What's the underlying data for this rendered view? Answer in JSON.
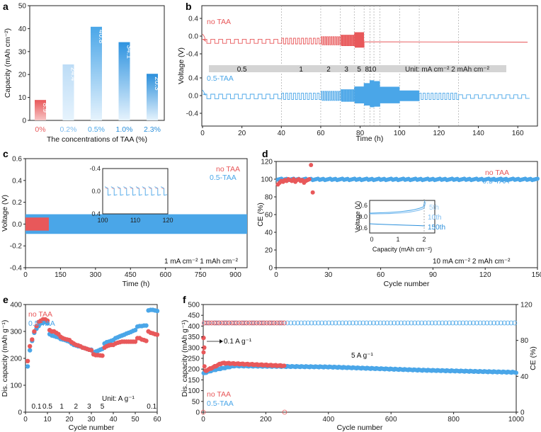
{
  "colors": {
    "no_taa": "#e8585a",
    "taa": "#4aa6e8",
    "taa_dark": "#2b8fdb",
    "grey_bar": "#d4d4d4"
  },
  "panel_labels": {
    "a": "a",
    "b": "b",
    "c": "c",
    "d": "d",
    "e": "e",
    "f": "f"
  },
  "chart_data": [
    {
      "id": "a",
      "type": "bar",
      "title": "",
      "xlabel": "The concentrations of TAA (%)",
      "ylabel": "Capacity (mAh cm⁻²)",
      "ylim": [
        0,
        50
      ],
      "yticks": [
        "0",
        "10",
        "20",
        "30",
        "40",
        "50"
      ],
      "categories": [
        "0%",
        "0.2%",
        "0.5%",
        "1.0%",
        "2.3%"
      ],
      "values": [
        8.9,
        24.4,
        40.8,
        34.1,
        20.3
      ],
      "value_labels": [
        "8.9",
        "24.4",
        "40.8",
        "34.1",
        "20.3"
      ]
    },
    {
      "id": "b",
      "type": "line",
      "xlabel": "Time (h)",
      "ylabel": "Voltage (V)",
      "xlim": [
        0,
        170
      ],
      "xticks": [
        "0",
        "20",
        "40",
        "60",
        "80",
        "100",
        "120",
        "140",
        "160"
      ],
      "yticks_top": [
        "0.4",
        "0.0",
        "-0.4"
      ],
      "yticks_bottom": [
        "0.4",
        "0.0",
        "-0.4"
      ],
      "series": [
        {
          "name": "no TAA"
        },
        {
          "name": "0.5-TAA"
        }
      ],
      "rate_segments_h": [
        0,
        40,
        60,
        70,
        77,
        82,
        85,
        87,
        90,
        100,
        110,
        130,
        165
      ],
      "rate_labels": [
        "0.5",
        "1",
        "2",
        "3",
        "5",
        "8",
        "10"
      ],
      "unit_note": "Unit: mA cm⁻²   2 mAh cm⁻²"
    },
    {
      "id": "c",
      "type": "line",
      "xlabel": "Time (h)",
      "ylabel": "Voltage (V)",
      "xlim": [
        0,
        950
      ],
      "ylim": [
        -0.4,
        0.6
      ],
      "xticks": [
        "0",
        "150",
        "300",
        "450",
        "600",
        "750",
        "900"
      ],
      "yticks": [
        "-0.4",
        "-0.2",
        "0.0",
        "0.2",
        "0.4",
        "0.6"
      ],
      "series": [
        {
          "name": "no TAA",
          "end_h": 100
        },
        {
          "name": "0.5-TAA",
          "end_h": 950
        }
      ],
      "inset": {
        "xlim": [
          100,
          120
        ],
        "ylim": [
          -0.4,
          0.4
        ],
        "xticks": [
          "100",
          "110",
          "120"
        ],
        "yticks": [
          "-0.4",
          "0.0",
          "0.4"
        ]
      },
      "condition": "1 mA cm⁻²   1 mAh cm⁻²"
    },
    {
      "id": "d",
      "type": "scatter",
      "xlabel": "Cycle number",
      "ylabel": "CE (%)",
      "xlim": [
        0,
        150
      ],
      "ylim": [
        0,
        120
      ],
      "xticks": [
        "0",
        "30",
        "60",
        "90",
        "120",
        "150"
      ],
      "yticks": [
        "0",
        "20",
        "40",
        "60",
        "80",
        "100",
        "120"
      ],
      "series": [
        {
          "name": "no TAA",
          "x": [
            1,
            2,
            3,
            4,
            5,
            6,
            7,
            8,
            9,
            10,
            11,
            12,
            13,
            14,
            15,
            16,
            17,
            18,
            19,
            20,
            21
          ],
          "y": [
            94,
            96,
            98,
            97,
            99,
            98,
            100,
            99,
            98,
            100,
            97,
            99,
            100,
            98,
            99,
            96,
            98,
            99,
            100,
            116,
            85
          ]
        },
        {
          "name": "0.5-TAA",
          "x_range": [
            1,
            150
          ],
          "y_mean": 99.8
        }
      ],
      "inset": {
        "xlabel": "Capacity (mAh cm⁻²)",
        "ylabel": "Voltage (V)",
        "xticks": [
          "0",
          "1",
          "2"
        ],
        "yticks": [
          "0.6",
          "0.0",
          "-0.6"
        ],
        "legend": [
          "5th",
          "10th",
          "150th"
        ]
      },
      "condition": "10 mA cm⁻²   2 mAh cm⁻²"
    },
    {
      "id": "e",
      "type": "scatter",
      "xlabel": "Cycle number",
      "ylabel": "Dis. capacity (mAh g⁻¹)",
      "xlim": [
        0,
        60
      ],
      "ylim": [
        0,
        400
      ],
      "xticks": [
        "0",
        "10",
        "20",
        "30",
        "40",
        "50",
        "60"
      ],
      "yticks": [
        "0",
        "100",
        "200",
        "300",
        "400"
      ],
      "series": [
        {
          "name": "no TAA",
          "y": [
            190,
            245,
            270,
            300,
            320,
            335,
            340,
            345,
            345,
            340,
            305,
            300,
            300,
            295,
            290,
            280,
            275,
            272,
            270,
            268,
            260,
            255,
            250,
            248,
            245,
            240,
            238,
            235,
            232,
            230,
            215,
            212,
            212,
            211,
            210,
            240,
            245,
            248,
            250,
            250,
            255,
            258,
            260,
            262,
            262,
            262,
            262,
            262,
            262,
            262,
            275,
            275,
            270,
            268,
            265,
            300,
            295,
            293,
            290,
            288
          ]
        },
        {
          "name": "0.5-TAA",
          "y": [
            170,
            230,
            265,
            295,
            310,
            320,
            330,
            332,
            335,
            330,
            290,
            285,
            283,
            280,
            278,
            272,
            270,
            268,
            265,
            262,
            255,
            250,
            248,
            245,
            244,
            240,
            238,
            235,
            232,
            232,
            222,
            225,
            228,
            232,
            235,
            255,
            260,
            262,
            265,
            268,
            275,
            278,
            282,
            285,
            288,
            292,
            295,
            298,
            302,
            305,
            318,
            320,
            320,
            322,
            322,
            378,
            380,
            380,
            378,
            376
          ]
        }
      ],
      "rate_labels": [
        "0.1",
        "0.5",
        "1",
        "2",
        "3",
        "5",
        "0.1"
      ],
      "unit_note": "Unit: A g⁻¹"
    },
    {
      "id": "f",
      "type": "scatter",
      "xlabel": "Cycle number",
      "ylabel": "Dis. capacity (mAh g⁻¹)",
      "ylabel_right": "CE (%)",
      "xlim": [
        0,
        1000
      ],
      "ylim": [
        0,
        500
      ],
      "ylim_right": [
        0,
        120
      ],
      "xticks": [
        "0",
        "200",
        "400",
        "600",
        "800",
        "1000"
      ],
      "yticks": [
        "0",
        "50",
        "100",
        "150",
        "200",
        "250",
        "300",
        "350",
        "400",
        "450",
        "500"
      ],
      "yticks_right": [
        "0",
        "40",
        "80",
        "120"
      ],
      "series": [
        {
          "name": "no TAA",
          "end_cycle": 260,
          "capacity": [
            [
              0,
              300
            ],
            [
              5,
              190
            ],
            [
              60,
              228
            ],
            [
              150,
              222
            ],
            [
              260,
              215
            ]
          ],
          "ce": 99.5
        },
        {
          "name": "0.5-TAA",
          "end_cycle": 1000,
          "capacity": [
            [
              0,
              180
            ],
            [
              30,
              195
            ],
            [
              100,
              215
            ],
            [
              400,
              210
            ],
            [
              700,
              195
            ],
            [
              1000,
              185
            ]
          ],
          "ce": 99.5
        }
      ],
      "annotations": [
        "0.1 A g⁻¹",
        "5 A g⁻¹"
      ]
    }
  ]
}
